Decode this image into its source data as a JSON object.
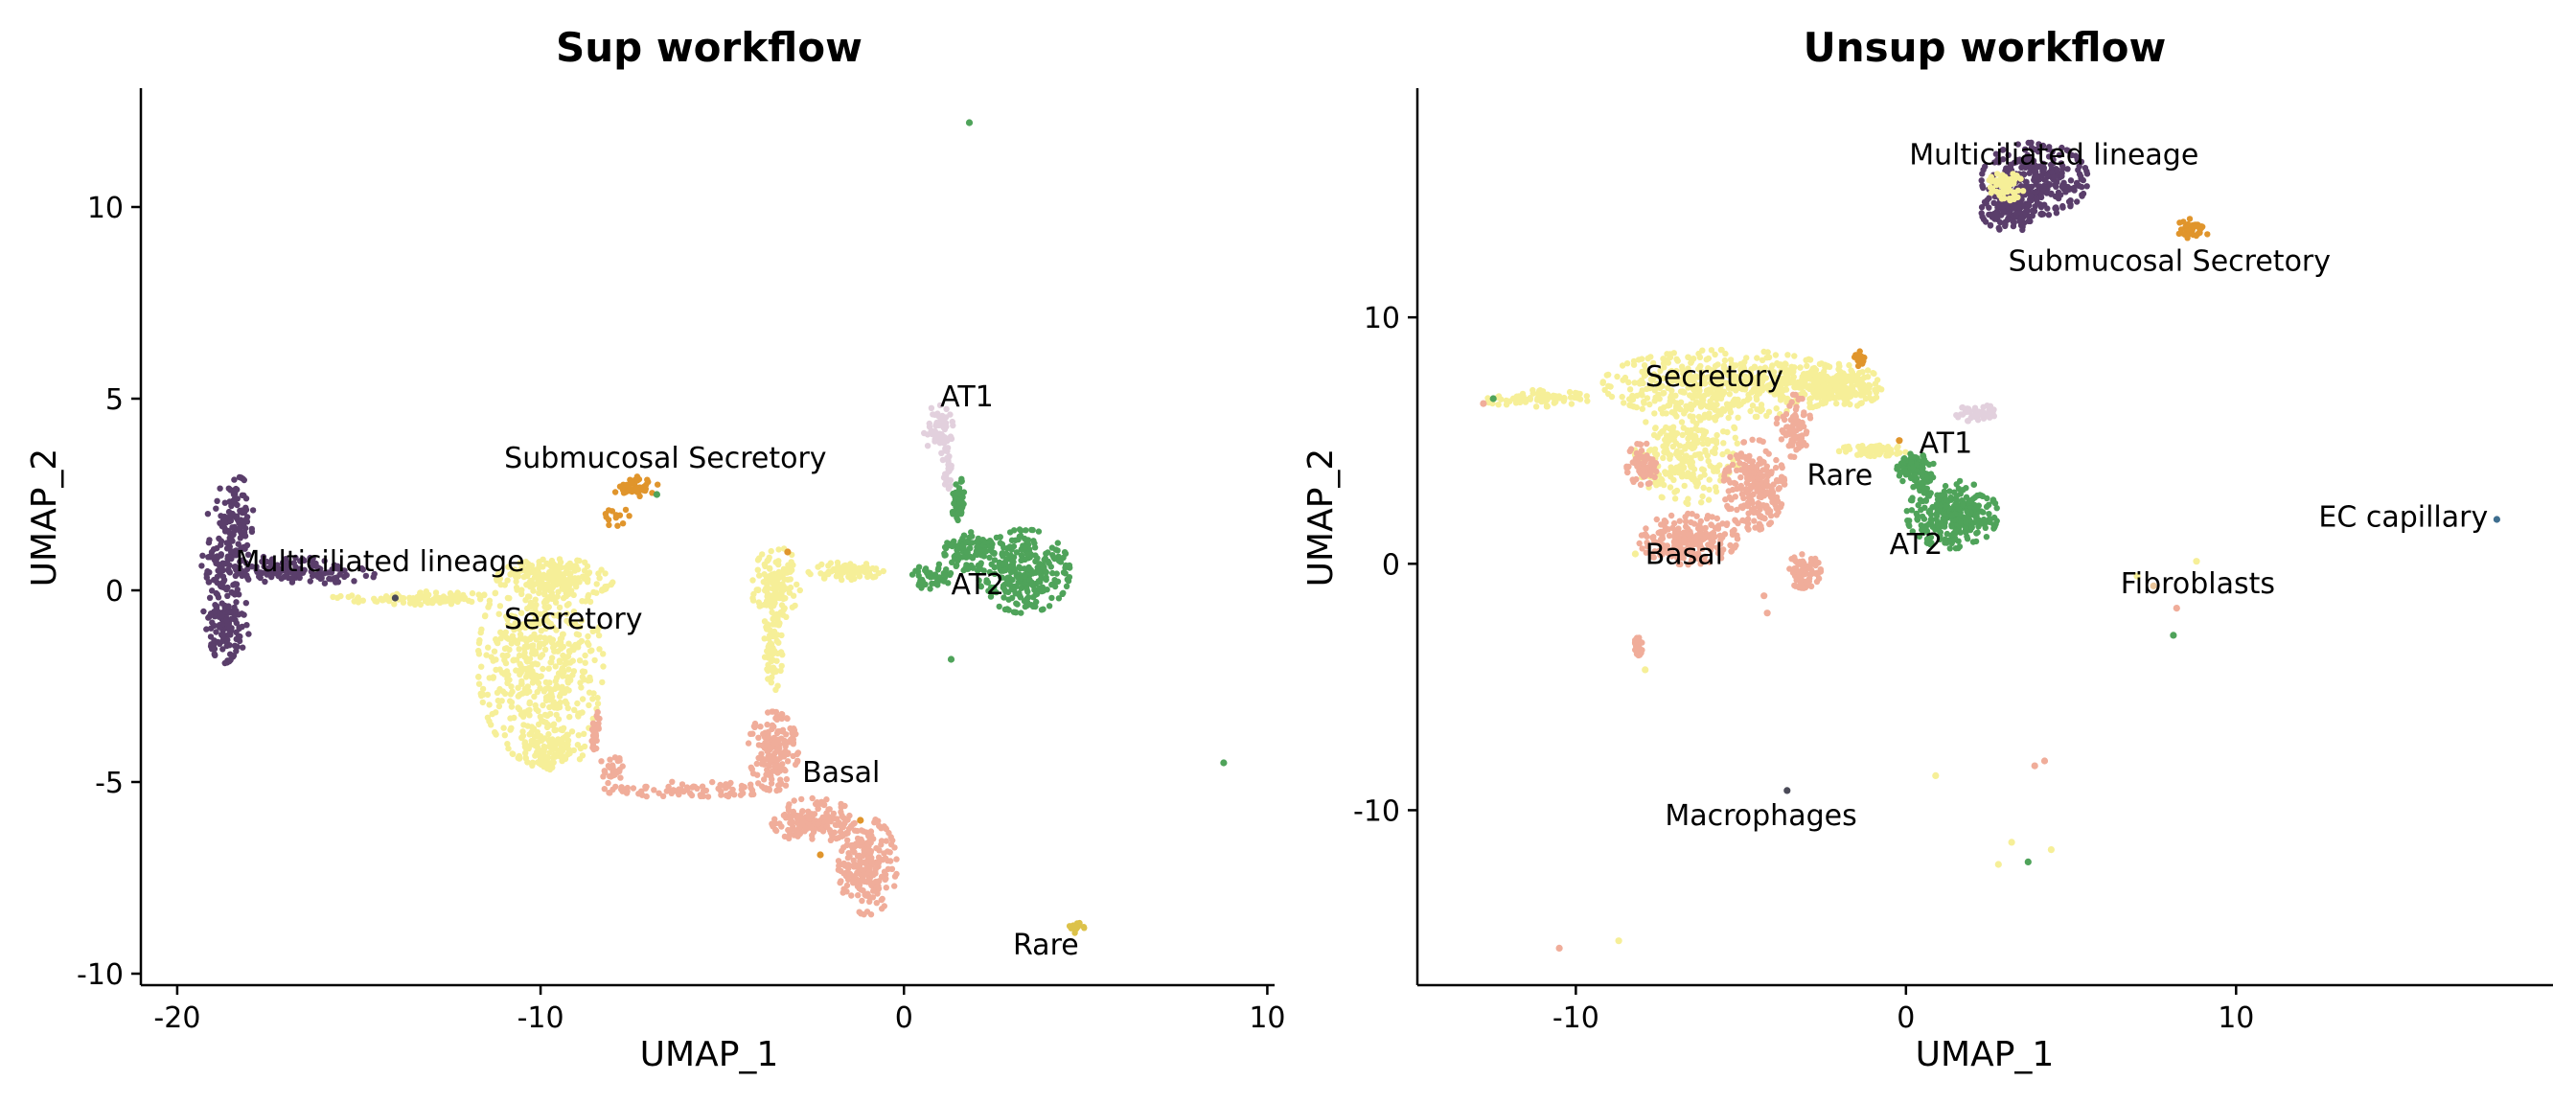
{
  "colors": {
    "Multiciliated lineage": "#5a3e6b",
    "Submucosal Secretory": "#e0952c",
    "Secretory": "#f6ef98",
    "Basal": "#f0ad9a",
    "AT1": "#e2d0dd",
    "AT2": "#4fa35a",
    "Rare": "#dcc24a",
    "Fibroblasts": "#e9c59a",
    "Macrophages": "#4a4a58",
    "EC capillary": "#3e6e8f"
  },
  "chart_data": [
    {
      "type": "scatter",
      "title": "Sup workflow",
      "xlabel": "UMAP_1",
      "ylabel": "UMAP_2",
      "xlim": [
        -21,
        10.2
      ],
      "ylim": [
        -10.3,
        13.1
      ],
      "xticks": [
        -20,
        -10,
        0,
        10
      ],
      "xtick_labels": [
        "-20",
        "-10",
        "0",
        "10"
      ],
      "yticks": [
        -10,
        -5,
        0,
        5,
        10
      ],
      "ytick_labels": [
        "-10",
        "-5",
        "0",
        "5",
        "10"
      ],
      "grid": false,
      "legend": "none",
      "cluster_labels": [
        {
          "text": "AT1",
          "x": 1.0,
          "y": 4.8
        },
        {
          "text": "Submucosal Secretory",
          "x": -11.0,
          "y": 3.2
        },
        {
          "text": "Multiciliated lineage",
          "x": -18.4,
          "y": 0.5
        },
        {
          "text": "AT2",
          "x": 1.3,
          "y": -0.1
        },
        {
          "text": "Secretory",
          "x": -11.0,
          "y": -1.0
        },
        {
          "text": "Basal",
          "x": -2.8,
          "y": -5.0
        },
        {
          "text": "Rare",
          "x": 3.0,
          "y": -9.5
        }
      ],
      "clusters": [
        {
          "name": "Multiciliated lineage",
          "points": 460,
          "shapes": [
            {
              "cx": -18.7,
              "cy": 0.4,
              "rx": 0.55,
              "ry": 2.0,
              "w": 5
            },
            {
              "cx": -18.3,
              "cy": 1.8,
              "rx": 0.35,
              "ry": 1.0,
              "w": 2
            },
            {
              "cx": -18.6,
              "cy": -1.0,
              "rx": 0.5,
              "ry": 0.6,
              "w": 2
            },
            {
              "cx": -17.1,
              "cy": 0.55,
              "rx": 1.3,
              "ry": 0.3,
              "w": 3
            },
            {
              "cx": -15.6,
              "cy": 0.4,
              "rx": 0.9,
              "ry": 0.2,
              "w": 1
            }
          ]
        },
        {
          "name": "Secretory",
          "points": 1200,
          "shapes": [
            {
              "cx": -10.0,
              "cy": -1.9,
              "rx": 1.5,
              "ry": 2.3,
              "w": 7
            },
            {
              "cx": -9.6,
              "cy": 0.3,
              "rx": 1.4,
              "ry": 0.45,
              "w": 3
            },
            {
              "cx": -13.5,
              "cy": -0.2,
              "rx": 2.0,
              "ry": 0.15,
              "w": 1.5
            },
            {
              "cx": -9.7,
              "cy": -4.1,
              "rx": 0.8,
              "ry": 0.5,
              "w": 1.5
            },
            {
              "cx": -3.5,
              "cy": 0.1,
              "rx": 0.6,
              "ry": 0.9,
              "w": 2
            },
            {
              "cx": -3.6,
              "cy": -1.6,
              "rx": 0.22,
              "ry": 0.9,
              "w": 1
            },
            {
              "cx": -1.6,
              "cy": 0.5,
              "rx": 0.9,
              "ry": 0.2,
              "w": 1
            }
          ]
        },
        {
          "name": "Submucosal Secretory",
          "points": 55,
          "shapes": [
            {
              "cx": -7.4,
              "cy": 2.7,
              "rx": 0.55,
              "ry": 0.25,
              "w": 3
            },
            {
              "cx": -7.9,
              "cy": 1.9,
              "rx": 0.3,
              "ry": 0.25,
              "w": 1
            }
          ]
        },
        {
          "name": "AT1",
          "points": 90,
          "shapes": [
            {
              "cx": 0.95,
              "cy": 4.2,
              "rx": 0.35,
              "ry": 0.55,
              "w": 3
            },
            {
              "cx": 1.2,
              "cy": 3.2,
              "rx": 0.12,
              "ry": 0.5,
              "w": 1
            }
          ]
        },
        {
          "name": "AT2",
          "points": 470,
          "shapes": [
            {
              "cx": 3.3,
              "cy": 0.5,
              "rx": 1.1,
              "ry": 0.95,
              "w": 6
            },
            {
              "cx": 1.8,
              "cy": 1.0,
              "rx": 0.6,
              "ry": 0.45,
              "w": 2
            },
            {
              "cx": 1.5,
              "cy": 2.3,
              "rx": 0.15,
              "ry": 0.6,
              "w": 1
            },
            {
              "cx": 0.8,
              "cy": 0.35,
              "rx": 0.5,
              "ry": 0.3,
              "w": 1
            }
          ]
        },
        {
          "name": "Basal",
          "points": 700,
          "shapes": [
            {
              "cx": -3.6,
              "cy": -4.2,
              "rx": 0.6,
              "ry": 0.9,
              "w": 3
            },
            {
              "cx": -2.5,
              "cy": -6.0,
              "rx": 1.0,
              "ry": 0.5,
              "w": 3
            },
            {
              "cx": -1.0,
              "cy": -7.2,
              "rx": 0.7,
              "ry": 1.1,
              "w": 4
            },
            {
              "cx": -6.0,
              "cy": -5.2,
              "rx": 2.0,
              "ry": 0.18,
              "w": 1.5
            },
            {
              "cx": -8.0,
              "cy": -4.7,
              "rx": 0.4,
              "ry": 0.3,
              "w": 0.5
            },
            {
              "cx": -8.5,
              "cy": -3.7,
              "rx": 0.15,
              "ry": 0.5,
              "w": 0.5
            }
          ]
        },
        {
          "name": "Rare",
          "points": 14,
          "shapes": [
            {
              "cx": 4.7,
              "cy": -8.8,
              "rx": 0.25,
              "ry": 0.12,
              "w": 1
            }
          ]
        }
      ],
      "extra_points": [
        {
          "x": 1.8,
          "y": 12.2,
          "c": "AT2"
        },
        {
          "x": 8.8,
          "y": -4.5,
          "c": "AT2"
        },
        {
          "x": -14.0,
          "y": -0.2,
          "c": "Macrophages"
        },
        {
          "x": -6.8,
          "y": 2.5,
          "c": "AT2"
        },
        {
          "x": -3.2,
          "y": 1.0,
          "c": "Submucosal Secretory"
        },
        {
          "x": -2.3,
          "y": -6.9,
          "c": "Submucosal Secretory"
        },
        {
          "x": -1.2,
          "y": -6.0,
          "c": "Submucosal Secretory"
        },
        {
          "x": 1.3,
          "y": -1.8,
          "c": "AT2"
        }
      ]
    },
    {
      "type": "scatter",
      "title": "Unsup workflow",
      "xlabel": "UMAP_1",
      "ylabel": "UMAP_2",
      "xlim": [
        -14.8,
        19.6
      ],
      "ylim": [
        -17.1,
        19.3
      ],
      "xticks": [
        -10,
        0,
        10
      ],
      "xtick_labels": [
        "-10",
        "0",
        "10"
      ],
      "yticks": [
        -10,
        0,
        10
      ],
      "ytick_labels": [
        "-10",
        "0",
        "10"
      ],
      "grid": false,
      "legend": "none",
      "cluster_labels": [
        {
          "text": "Multiciliated lineage",
          "x": 0.1,
          "y": 16.2
        },
        {
          "text": "Submucosal Secretory",
          "x": 3.1,
          "y": 11.9
        },
        {
          "text": "Secretory",
          "x": -7.9,
          "y": 7.2
        },
        {
          "text": "AT1",
          "x": 0.4,
          "y": 4.5
        },
        {
          "text": "Rare",
          "x": -3.0,
          "y": 3.2
        },
        {
          "text": "EC capillary",
          "x": 12.5,
          "y": 1.5
        },
        {
          "text": "AT2",
          "x": -0.5,
          "y": 0.4
        },
        {
          "text": "Basal",
          "x": -7.9,
          "y": 0.0
        },
        {
          "text": "Fibroblasts",
          "x": 6.5,
          "y": -1.2
        },
        {
          "text": "Macrophages",
          "x": -7.3,
          "y": -10.6
        }
      ],
      "clusters": [
        {
          "name": "Multiciliated lineage",
          "points": 420,
          "shapes": [
            {
              "cx": 3.9,
              "cy": 15.6,
              "rx": 1.4,
              "ry": 1.3,
              "w": 5
            },
            {
              "cx": 3.2,
              "cy": 14.3,
              "rx": 0.8,
              "ry": 0.7,
              "w": 2
            }
          ]
        },
        {
          "name": "Submucosal Secretory",
          "points": 55,
          "shapes": [
            {
              "cx": 8.7,
              "cy": 13.6,
              "rx": 0.45,
              "ry": 0.35,
              "w": 3
            },
            {
              "cx": -1.4,
              "cy": 8.3,
              "rx": 0.15,
              "ry": 0.35,
              "w": 1
            }
          ]
        },
        {
          "name": "Secretory",
          "points": 1200,
          "shapes": [
            {
              "cx": -5.5,
              "cy": 7.3,
              "rx": 3.2,
              "ry": 1.2,
              "w": 6
            },
            {
              "cx": -2.3,
              "cy": 7.2,
              "rx": 1.4,
              "ry": 0.8,
              "w": 3
            },
            {
              "cx": -6.6,
              "cy": 4.5,
              "rx": 1.4,
              "ry": 1.8,
              "w": 3
            },
            {
              "cx": -11.2,
              "cy": 6.7,
              "rx": 1.4,
              "ry": 0.3,
              "w": 1
            },
            {
              "cx": 3.0,
              "cy": 15.3,
              "rx": 0.5,
              "ry": 0.5,
              "w": 0.8
            },
            {
              "cx": -1.0,
              "cy": 4.6,
              "rx": 0.9,
              "ry": 0.2,
              "w": 0.8
            }
          ]
        },
        {
          "name": "Basal",
          "points": 700,
          "shapes": [
            {
              "cx": -4.6,
              "cy": 3.2,
              "rx": 0.8,
              "ry": 1.6,
              "w": 3
            },
            {
              "cx": -6.6,
              "cy": 1.0,
              "rx": 1.3,
              "ry": 0.9,
              "w": 3
            },
            {
              "cx": -3.4,
              "cy": 5.6,
              "rx": 0.45,
              "ry": 1.1,
              "w": 1
            },
            {
              "cx": -8.0,
              "cy": 4.0,
              "rx": 0.4,
              "ry": 0.8,
              "w": 1
            },
            {
              "cx": -3.1,
              "cy": -0.3,
              "rx": 0.45,
              "ry": 0.6,
              "w": 1
            },
            {
              "cx": -8.1,
              "cy": -3.3,
              "rx": 0.1,
              "ry": 0.4,
              "w": 0.3
            }
          ]
        },
        {
          "name": "AT1",
          "points": 50,
          "shapes": [
            {
              "cx": 2.2,
              "cy": 6.1,
              "rx": 0.6,
              "ry": 0.3,
              "w": 1
            }
          ]
        },
        {
          "name": "AT2",
          "points": 420,
          "shapes": [
            {
              "cx": 1.4,
              "cy": 2.0,
              "rx": 1.2,
              "ry": 1.2,
              "w": 6
            },
            {
              "cx": 0.3,
              "cy": 3.8,
              "rx": 0.5,
              "ry": 0.6,
              "w": 2
            }
          ]
        }
      ],
      "extra_points": [
        {
          "x": 17.9,
          "y": 1.8,
          "c": "EC capillary"
        },
        {
          "x": -3.6,
          "y": -9.2,
          "c": "Macrophages"
        },
        {
          "x": 8.2,
          "y": -1.8,
          "c": "Basal"
        },
        {
          "x": 8.1,
          "y": -2.9,
          "c": "AT2"
        },
        {
          "x": 7.5,
          "y": -0.9,
          "c": "Fibroblasts"
        },
        {
          "x": 7.0,
          "y": -0.5,
          "c": "Secretory"
        },
        {
          "x": 8.8,
          "y": 0.1,
          "c": "Secretory"
        },
        {
          "x": 4.2,
          "y": -8.0,
          "c": "Basal"
        },
        {
          "x": 3.9,
          "y": -8.2,
          "c": "Basal"
        },
        {
          "x": 4.4,
          "y": -11.6,
          "c": "Secretory"
        },
        {
          "x": 3.2,
          "y": -11.3,
          "c": "Secretory"
        },
        {
          "x": 3.7,
          "y": -12.1,
          "c": "AT2"
        },
        {
          "x": 2.8,
          "y": -12.2,
          "c": "Secretory"
        },
        {
          "x": 0.9,
          "y": -8.6,
          "c": "Secretory"
        },
        {
          "x": -10.5,
          "y": -15.6,
          "c": "Basal"
        },
        {
          "x": -8.7,
          "y": -15.3,
          "c": "Secretory"
        },
        {
          "x": -12.8,
          "y": 6.5,
          "c": "Basal"
        },
        {
          "x": -12.5,
          "y": 6.7,
          "c": "AT2"
        },
        {
          "x": -4.3,
          "y": -1.3,
          "c": "Basal"
        },
        {
          "x": -7.9,
          "y": -4.3,
          "c": "Secretory"
        },
        {
          "x": -4.2,
          "y": -2.0,
          "c": "Basal"
        },
        {
          "x": -8.2,
          "y": 0.4,
          "c": "Secretory"
        },
        {
          "x": -0.2,
          "y": 5.0,
          "c": "Submucosal Secretory"
        }
      ]
    }
  ]
}
